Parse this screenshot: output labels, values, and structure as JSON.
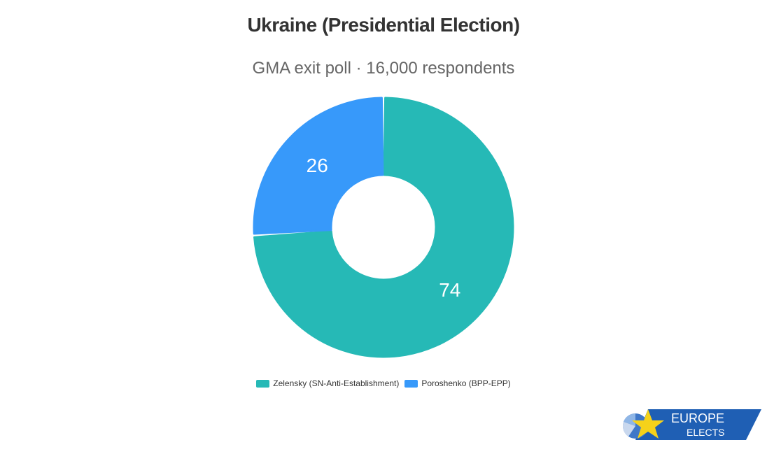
{
  "chart_data": {
    "type": "pie",
    "title": "Ukraine (Presidential Election)",
    "subtitle": "GMA exit poll · 16,000 respondents",
    "categories": [
      "Zelensky (SN-Anti-Establishment)",
      "Poroshenko (BPP-EPP)"
    ],
    "values": [
      74,
      26
    ],
    "colors": [
      "#26b9b6",
      "#3799fa"
    ],
    "donut": true,
    "legend_position": "bottom-center"
  },
  "logo": {
    "line1": "EUROPE",
    "line2": "ELECTS",
    "colors": {
      "banner": "#1f5fb4",
      "star": "#f5d21a"
    }
  }
}
